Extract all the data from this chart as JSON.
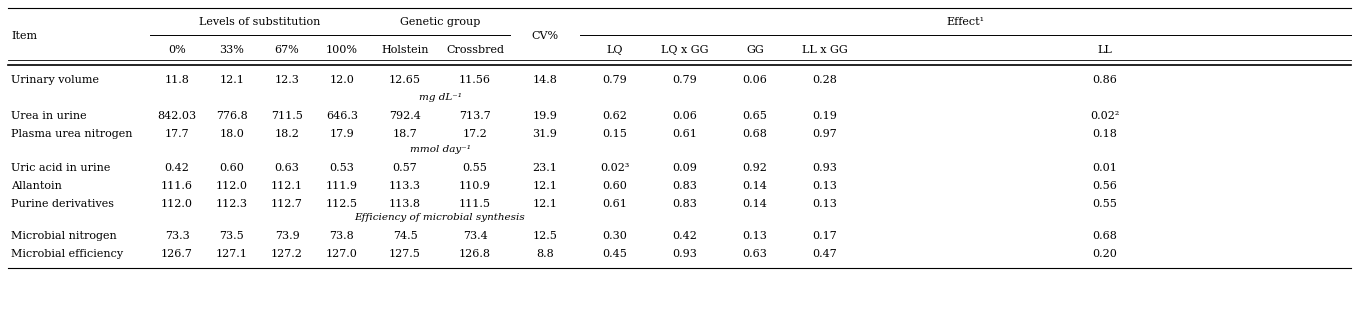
{
  "rows": [
    [
      "Urinary volume",
      "11.8",
      "12.1",
      "12.3",
      "12.0",
      "12.65",
      "11.56",
      "14.8",
      "0.79",
      "0.79",
      "0.06",
      "0.28",
      "0.86"
    ],
    [
      "Urea in urine",
      "842.03",
      "776.8",
      "711.5",
      "646.3",
      "792.4",
      "713.7",
      "19.9",
      "0.62",
      "0.06",
      "0.65",
      "0.19",
      "0.02²"
    ],
    [
      "Plasma urea nitrogen",
      "17.7",
      "18.0",
      "18.2",
      "17.9",
      "18.7",
      "17.2",
      "31.9",
      "0.15",
      "0.61",
      "0.68",
      "0.97",
      "0.18"
    ],
    [
      "Uric acid in urine",
      "0.42",
      "0.60",
      "0.63",
      "0.53",
      "0.57",
      "0.55",
      "23.1",
      "0.02³",
      "0.09",
      "0.92",
      "0.93",
      "0.01"
    ],
    [
      "Allantoin",
      "111.6",
      "112.0",
      "112.1",
      "111.9",
      "113.3",
      "110.9",
      "12.1",
      "0.60",
      "0.83",
      "0.14",
      "0.13",
      "0.56"
    ],
    [
      "Purine derivatives",
      "112.0",
      "112.3",
      "112.7",
      "112.5",
      "113.8",
      "111.5",
      "12.1",
      "0.61",
      "0.83",
      "0.14",
      "0.13",
      "0.55"
    ],
    [
      "Microbial nitrogen",
      "73.3",
      "73.5",
      "73.9",
      "73.8",
      "74.5",
      "73.4",
      "12.5",
      "0.30",
      "0.42",
      "0.13",
      "0.17",
      "0.68"
    ],
    [
      "Microbial efficiency",
      "126.7",
      "127.1",
      "127.2",
      "127.0",
      "127.5",
      "126.8",
      "8.8",
      "0.45",
      "0.93",
      "0.63",
      "0.47",
      "0.20"
    ]
  ],
  "unit_mg": "mg dL⁻¹",
  "unit_mmol": "mmol day⁻¹",
  "unit_eff": "Efficiency of microbial synthesis",
  "span_subst": "Levels of substitution",
  "span_genet": "Genetic group",
  "span_eff": "Effect¹",
  "item_lbl": "Item",
  "cv_lbl": "CV%",
  "subhdrs": [
    "0%",
    "33%",
    "67%",
    "100%",
    "Holstein",
    "Crossbred",
    "LQ",
    "LQ x GG",
    "GG",
    "LL x GG",
    "LL"
  ],
  "bg": "#ffffff",
  "fs": 8.0,
  "fs_unit": 7.5
}
